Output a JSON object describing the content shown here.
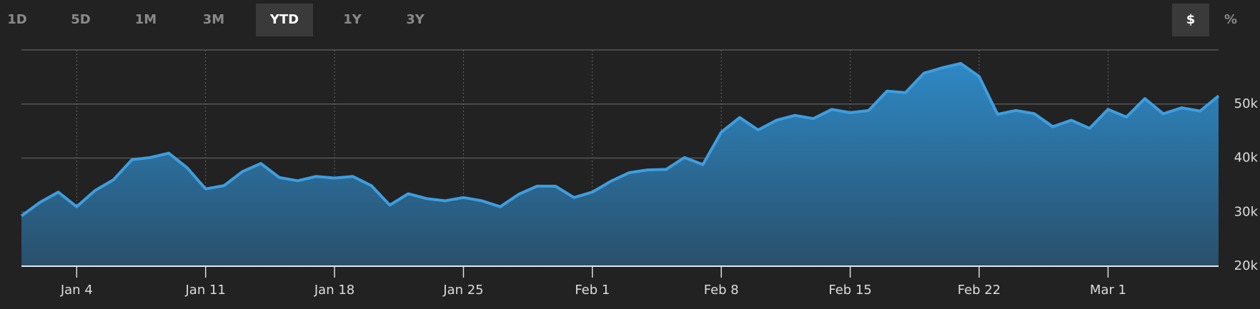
{
  "controls": {
    "ranges": [
      "1D",
      "5D",
      "1M",
      "3M",
      "YTD",
      "1Y",
      "3Y"
    ],
    "active_range": "YTD",
    "units": [
      "$",
      "%"
    ],
    "active_unit": "$"
  },
  "chart_data": {
    "type": "area",
    "color": "#3d9ee0",
    "grid": true,
    "categories": [
      "Jan 1",
      "Jan 2",
      "Jan 3",
      "Jan 4",
      "Jan 5",
      "Jan 6",
      "Jan 7",
      "Jan 8",
      "Jan 9",
      "Jan 10",
      "Jan 11",
      "Jan 12",
      "Jan 13",
      "Jan 14",
      "Jan 15",
      "Jan 16",
      "Jan 17",
      "Jan 18",
      "Jan 19",
      "Jan 20",
      "Jan 21",
      "Jan 22",
      "Jan 23",
      "Jan 24",
      "Jan 25",
      "Jan 26",
      "Jan 27",
      "Jan 28",
      "Jan 29",
      "Jan 30",
      "Jan 31",
      "Feb 1",
      "Feb 2",
      "Feb 3",
      "Feb 4",
      "Feb 5",
      "Feb 6",
      "Feb 7",
      "Feb 8",
      "Feb 9",
      "Feb 10",
      "Feb 11",
      "Feb 12",
      "Feb 13",
      "Feb 14",
      "Feb 15",
      "Feb 16",
      "Feb 17",
      "Feb 18",
      "Feb 19",
      "Feb 20",
      "Feb 21",
      "Feb 22",
      "Feb 23",
      "Feb 24",
      "Feb 25",
      "Feb 26",
      "Feb 27",
      "Feb 28",
      "Mar 1",
      "Mar 2",
      "Mar 3",
      "Mar 4",
      "Mar 5",
      "Mar 6",
      "Mar 7"
    ],
    "values": [
      29300,
      31800,
      33700,
      31000,
      34000,
      36000,
      39700,
      40100,
      40900,
      38200,
      34300,
      34900,
      37500,
      39000,
      36400,
      35800,
      36600,
      36300,
      36600,
      34900,
      31300,
      33400,
      32500,
      32100,
      32700,
      32100,
      31000,
      33300,
      34800,
      34800,
      32700,
      33700,
      35700,
      37300,
      37800,
      37900,
      40100,
      38800,
      44800,
      47500,
      45200,
      47000,
      47900,
      47300,
      49000,
      48400,
      48800,
      52400,
      52100,
      55700,
      56700,
      57500,
      55100,
      48100,
      48800,
      48200,
      45800,
      47000,
      45500,
      49000,
      47600,
      51000,
      48200,
      49300,
      48700,
      51500
    ],
    "xticks": [
      "Jan 4",
      "Jan 11",
      "Jan 18",
      "Jan 25",
      "Feb 1",
      "Feb 8",
      "Feb 15",
      "Feb 22",
      "Mar 1"
    ],
    "ylim": [
      20000,
      60000
    ],
    "yticks": [
      {
        "value": 20000,
        "label": "20k"
      },
      {
        "value": 30000,
        "label": "30k"
      },
      {
        "value": 40000,
        "label": "40k"
      },
      {
        "value": 50000,
        "label": "50k"
      }
    ]
  }
}
